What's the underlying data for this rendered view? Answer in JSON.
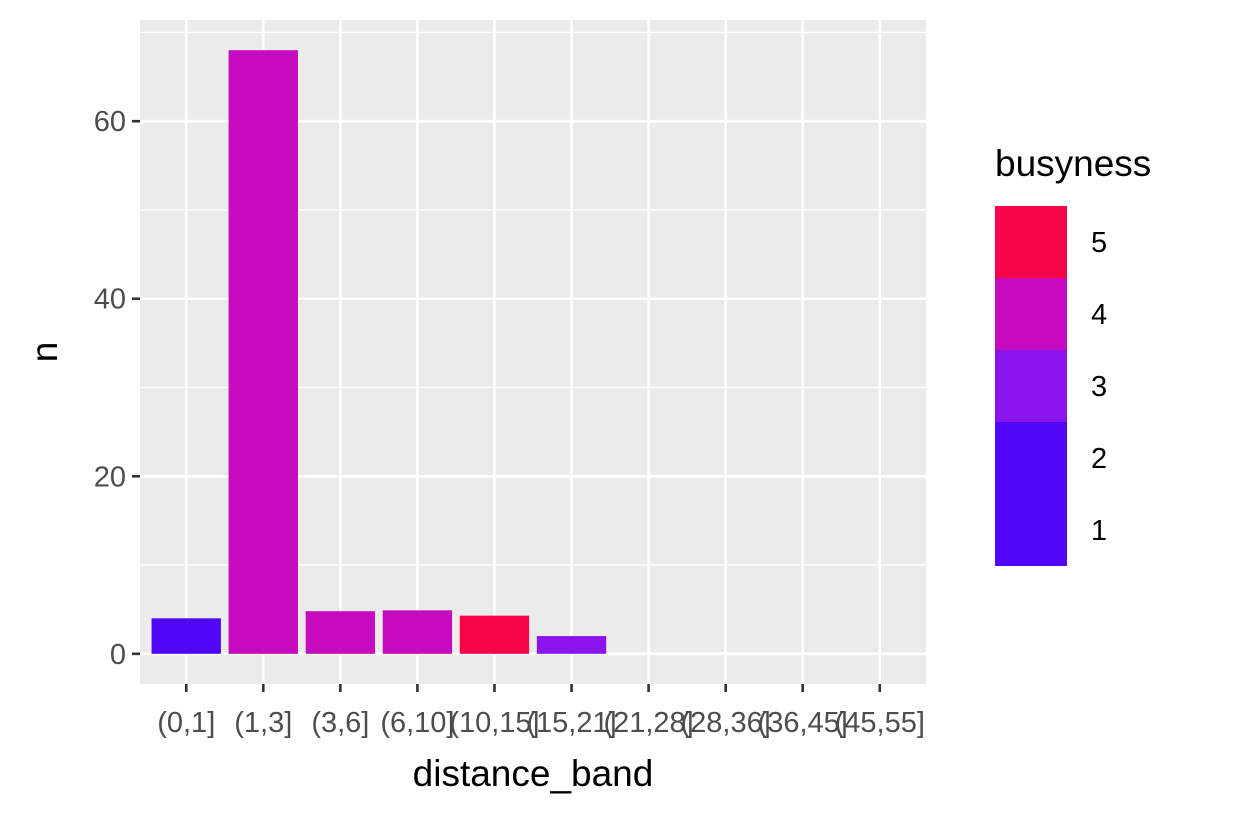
{
  "chart_data": {
    "type": "bar",
    "xlabel": "distance_band",
    "ylabel": "n",
    "categories": [
      "(0,1]",
      "(1,3]",
      "(3,6]",
      "(6,10]",
      "(10,15]",
      "(15,21]",
      "(21,28]",
      "(28,36]",
      "(36,45]",
      "(45,55]"
    ],
    "values": [
      4,
      68,
      4.8,
      4.9,
      4.3,
      2,
      0,
      0,
      0,
      0
    ],
    "fill_busyness": [
      1,
      4,
      4,
      4,
      5,
      2,
      null,
      null,
      null,
      null
    ],
    "ylim": [
      -3.4,
      71.4
    ],
    "yticks": [
      0,
      20,
      40,
      60
    ],
    "ytick_labels": [
      "0",
      "20",
      "40",
      "60"
    ],
    "grid": true,
    "legend": {
      "title": "busyness",
      "position": "right",
      "type": "colorbar",
      "min": 0.5,
      "max": 5.5,
      "breaks": [
        1,
        2,
        3,
        4,
        5
      ],
      "labels": [
        "1",
        "2",
        "3",
        "4",
        "5"
      ],
      "colors": [
        "#5006F7",
        "#8B14EC",
        "#C60BBE",
        "#C60BBE",
        "#F70548"
      ]
    },
    "panel_background": "#EBEBEB",
    "grid_color": "#FFFFFF"
  }
}
